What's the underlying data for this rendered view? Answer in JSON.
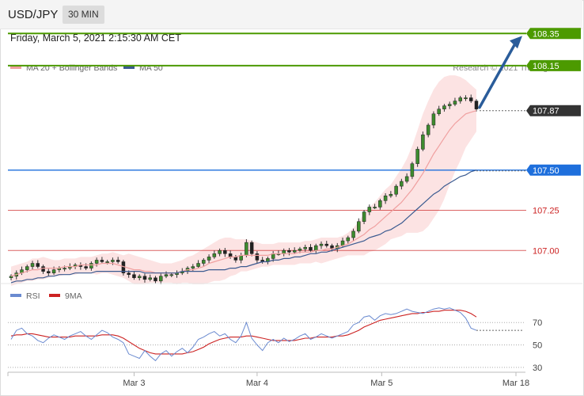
{
  "header": {
    "symbol": "USD/JPY",
    "timeframe": "30 MIN",
    "datetime": "Friday, March 5, 2021 2:15:30 AM CET",
    "copyright": "Research © 2021 Trading Central"
  },
  "chart_data": [
    {
      "type": "candlestick",
      "legend": [
        {
          "name": "MA 20 + Bollinger Bands",
          "color": "#f0a0a0"
        },
        {
          "name": "MA 50",
          "color": "#3a5a90"
        }
      ],
      "levels": [
        {
          "value": 108.35,
          "label": "108.35",
          "color": "#4c9a00",
          "style": "tag"
        },
        {
          "value": 108.15,
          "label": "108.15",
          "color": "#4c9a00",
          "style": "tag"
        },
        {
          "value": 107.87,
          "label": "107.87",
          "color": "#333333",
          "style": "tag-current"
        },
        {
          "value": 107.5,
          "label": "107.50",
          "color": "#1e6fdc",
          "style": "tag"
        },
        {
          "value": 107.25,
          "label": "107.25",
          "color": "#cc2222",
          "style": "text"
        },
        {
          "value": 107.0,
          "label": "107.00",
          "color": "#cc2222",
          "style": "text"
        }
      ],
      "ylim": [
        106.75,
        108.45
      ],
      "x_ticks": [
        "Mar 3",
        "Mar 4",
        "Mar 5",
        "Mar 18"
      ],
      "close": [
        106.84,
        106.86,
        106.88,
        106.9,
        106.92,
        106.9,
        106.87,
        106.86,
        106.88,
        106.89,
        106.89,
        106.9,
        106.91,
        106.9,
        106.89,
        106.92,
        106.94,
        106.93,
        106.93,
        106.94,
        106.93,
        106.86,
        106.85,
        106.83,
        106.84,
        106.82,
        106.83,
        106.81,
        106.84,
        106.85,
        106.85,
        106.86,
        106.87,
        106.89,
        106.9,
        106.92,
        106.94,
        106.96,
        106.98,
        107.0,
        106.98,
        106.96,
        106.94,
        106.97,
        107.05,
        106.98,
        106.94,
        106.93,
        106.95,
        106.98,
        106.98,
        107.0,
        106.99,
        107.0,
        107.01,
        107.02,
        107.0,
        107.03,
        107.04,
        107.03,
        107.01,
        107.03,
        107.06,
        107.08,
        107.12,
        107.18,
        107.24,
        107.27,
        107.27,
        107.31,
        107.34,
        107.35,
        107.4,
        107.43,
        107.46,
        107.54,
        107.63,
        107.72,
        107.78,
        107.85,
        107.88,
        107.9,
        107.91,
        107.93,
        107.95,
        107.95,
        107.93,
        107.88
      ],
      "ma20": [
        106.84,
        106.85,
        106.86,
        106.87,
        106.88,
        106.88,
        106.89,
        106.89,
        106.89,
        106.89,
        106.9,
        106.9,
        106.9,
        106.91,
        106.91,
        106.91,
        106.91,
        106.92,
        106.92,
        106.92,
        106.91,
        106.9,
        106.89,
        106.88,
        106.88,
        106.87,
        106.87,
        106.86,
        106.86,
        106.86,
        106.86,
        106.86,
        106.87,
        106.88,
        106.88,
        106.89,
        106.9,
        106.92,
        106.93,
        106.94,
        106.95,
        106.96,
        106.96,
        106.97,
        106.97,
        106.97,
        106.97,
        106.97,
        106.97,
        106.98,
        106.98,
        106.98,
        106.98,
        106.98,
        106.99,
        106.99,
        106.99,
        107.0,
        107.0,
        107.01,
        107.01,
        107.02,
        107.03,
        107.04,
        107.06,
        107.08,
        107.1,
        107.13,
        107.15,
        107.18,
        107.21,
        107.24,
        107.27,
        107.3,
        107.34,
        107.38,
        107.43,
        107.48,
        107.54,
        107.6,
        107.65,
        107.7,
        107.75,
        107.79,
        107.82,
        107.85,
        107.86,
        107.87
      ],
      "bb_upper": [
        106.9,
        106.91,
        106.92,
        106.93,
        106.95,
        106.95,
        106.96,
        106.95,
        106.94,
        106.94,
        106.95,
        106.95,
        106.95,
        106.96,
        106.96,
        106.96,
        106.97,
        106.98,
        106.98,
        106.99,
        106.98,
        106.97,
        106.98,
        106.97,
        106.96,
        106.95,
        106.94,
        106.93,
        106.92,
        106.92,
        106.92,
        106.93,
        106.94,
        106.96,
        106.97,
        106.99,
        107.01,
        107.03,
        107.05,
        107.07,
        107.08,
        107.08,
        107.07,
        107.07,
        107.07,
        107.06,
        107.05,
        107.04,
        107.04,
        107.04,
        107.05,
        107.05,
        107.05,
        107.05,
        107.05,
        107.06,
        107.06,
        107.07,
        107.08,
        107.08,
        107.08,
        107.08,
        107.09,
        107.11,
        107.14,
        107.18,
        107.23,
        107.27,
        107.3,
        107.34,
        107.38,
        107.41,
        107.46,
        107.51,
        107.57,
        107.65,
        107.75,
        107.85,
        107.93,
        108.0,
        108.05,
        108.08,
        108.09,
        108.09,
        108.08,
        108.06,
        108.03,
        108.0
      ],
      "bb_lower": [
        106.78,
        106.79,
        106.8,
        106.81,
        106.81,
        106.82,
        106.82,
        106.83,
        106.84,
        106.84,
        106.85,
        106.85,
        106.85,
        106.86,
        106.86,
        106.86,
        106.85,
        106.86,
        106.86,
        106.85,
        106.84,
        106.83,
        106.81,
        106.79,
        106.79,
        106.79,
        106.8,
        106.8,
        106.8,
        106.8,
        106.8,
        106.79,
        106.8,
        106.8,
        106.79,
        106.79,
        106.79,
        106.8,
        106.81,
        106.81,
        106.82,
        106.84,
        106.85,
        106.87,
        106.87,
        106.88,
        106.89,
        106.9,
        106.9,
        106.91,
        106.91,
        106.91,
        106.91,
        106.91,
        106.92,
        106.92,
        106.92,
        106.93,
        106.92,
        106.93,
        106.94,
        106.95,
        106.96,
        106.97,
        106.97,
        106.97,
        106.97,
        106.99,
        107.0,
        107.02,
        107.04,
        107.07,
        107.08,
        107.09,
        107.11,
        107.11,
        107.11,
        107.12,
        107.15,
        107.2,
        107.25,
        107.32,
        107.41,
        107.49,
        107.56,
        107.64,
        107.69,
        107.74
      ],
      "ma50": [
        106.8,
        106.81,
        106.81,
        106.82,
        106.82,
        106.83,
        106.83,
        106.84,
        106.84,
        106.85,
        106.85,
        106.85,
        106.86,
        106.86,
        106.86,
        106.86,
        106.87,
        106.87,
        106.87,
        106.87,
        106.87,
        106.87,
        106.87,
        106.87,
        106.87,
        106.86,
        106.86,
        106.86,
        106.86,
        106.86,
        106.86,
        106.86,
        106.87,
        106.87,
        106.87,
        106.87,
        106.87,
        106.88,
        106.88,
        106.88,
        106.88,
        106.89,
        106.89,
        106.9,
        106.9,
        106.91,
        106.92,
        106.93,
        106.93,
        106.94,
        106.94,
        106.95,
        106.95,
        106.96,
        106.96,
        106.97,
        106.98,
        106.98,
        106.99,
        106.99,
        107.0,
        107.01,
        107.02,
        107.03,
        107.04,
        107.05,
        107.06,
        107.08,
        107.09,
        107.1,
        107.12,
        107.13,
        107.15,
        107.17,
        107.2,
        107.23,
        107.26,
        107.29,
        107.32,
        107.35,
        107.37,
        107.4,
        107.42,
        107.44,
        107.46,
        107.47,
        107.49,
        107.5
      ]
    },
    {
      "type": "line",
      "legend": [
        {
          "name": "RSI",
          "color": "#6a8ad0"
        },
        {
          "name": "9MA",
          "color": "#cc2222"
        }
      ],
      "ylim": [
        20,
        85
      ],
      "y_ticks": [
        30,
        50,
        70
      ],
      "rsi": [
        55,
        63,
        65,
        60,
        58,
        54,
        52,
        56,
        59,
        57,
        55,
        58,
        60,
        62,
        58,
        55,
        59,
        63,
        61,
        57,
        55,
        52,
        42,
        40,
        38,
        45,
        40,
        36,
        42,
        45,
        40,
        44,
        47,
        43,
        48,
        55,
        57,
        60,
        62,
        58,
        60,
        55,
        52,
        58,
        70,
        56,
        50,
        45,
        52,
        55,
        52,
        56,
        53,
        55,
        58,
        60,
        55,
        57,
        60,
        58,
        56,
        58,
        60,
        62,
        68,
        70,
        75,
        76,
        72,
        76,
        78,
        77,
        78,
        80,
        82,
        80,
        79,
        78,
        80,
        82,
        83,
        82,
        83,
        81,
        79,
        74,
        65,
        63
      ],
      "ma9": [
        58,
        59,
        59,
        60,
        60,
        59,
        58,
        57,
        57,
        57,
        57,
        57,
        58,
        58,
        58,
        58,
        58,
        59,
        59,
        59,
        58,
        56,
        53,
        50,
        47,
        45,
        43,
        42,
        42,
        42,
        42,
        42,
        42,
        43,
        44,
        46,
        48,
        51,
        53,
        55,
        56,
        57,
        57,
        57,
        58,
        58,
        57,
        56,
        55,
        54,
        54,
        54,
        54,
        54,
        55,
        56,
        56,
        57,
        57,
        57,
        57,
        58,
        58,
        59,
        61,
        63,
        66,
        68,
        70,
        72,
        73,
        74,
        75,
        76,
        77,
        78,
        78,
        79,
        79,
        80,
        80,
        81,
        81,
        81,
        81,
        80,
        78,
        75
      ]
    }
  ]
}
